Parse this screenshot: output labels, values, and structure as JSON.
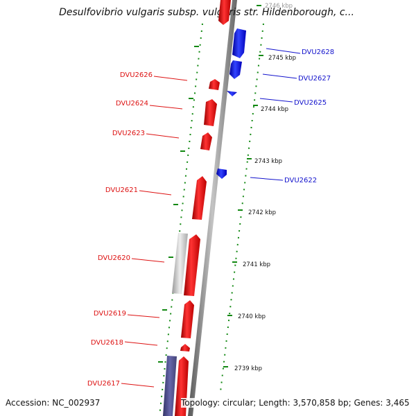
{
  "title": "Desulfovibrio vulgaris subsp. vulgaris str. Hildenborough, c...",
  "accession": "Accession: NC_002937",
  "summary": "Topology: circular; Length: 3,570,858 bp; Genes: 3,465",
  "colors": {
    "forward": "#ee1111",
    "reverse": "#1122ee",
    "other_gray": "#c8c8c8",
    "other_purple": "#555599",
    "backbone": "#8a8a8a",
    "tick_marks": "#118811"
  },
  "ticks": [
    "2746 kbp",
    "2745 kbp",
    "2744 kbp",
    "2743 kbp",
    "2742 kbp",
    "2741 kbp",
    "2740 kbp",
    "2739 kbp"
  ],
  "genes_reverse": [
    "DVU2628",
    "DVU2627",
    "DVU2625",
    "DVU2622"
  ],
  "genes_forward": [
    "DVU2626",
    "DVU2624",
    "DVU2623",
    "DVU2621",
    "DVU2620",
    "DVU2619",
    "DVU2618",
    "DVU2617"
  ]
}
